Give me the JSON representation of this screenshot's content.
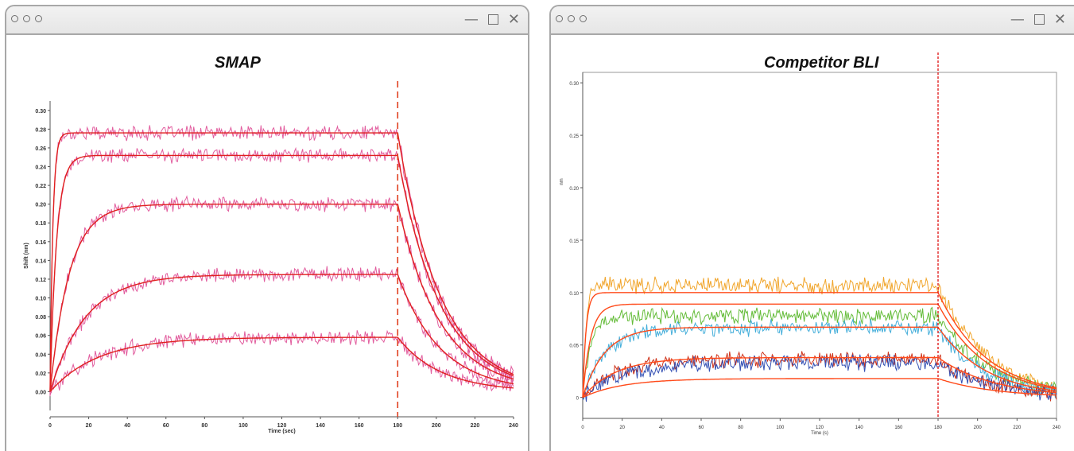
{
  "windows": [
    {
      "name": "SMAP",
      "controls": {
        "minimize": "—",
        "close": "✕"
      }
    },
    {
      "name": "Competitor BLI",
      "controls": {
        "minimize": "—",
        "close": "✕"
      }
    }
  ],
  "chart_data": [
    {
      "type": "line",
      "title": "SMAP",
      "xlabel": "Time (sec)",
      "ylabel": "Shift (nm)",
      "xlim": [
        0,
        240
      ],
      "ylim": [
        -0.02,
        0.31
      ],
      "xticks": [
        "0",
        "20",
        "40",
        "60",
        "80",
        "100",
        "120",
        "140",
        "160",
        "180",
        "200",
        "220",
        "240"
      ],
      "yticks": [
        "0.00",
        "0.02",
        "0.04",
        "0.06",
        "0.08",
        "0.10",
        "0.12",
        "0.14",
        "0.16",
        "0.18",
        "0.20",
        "0.22",
        "0.24",
        "0.26",
        "0.28",
        "0.30"
      ],
      "grid": false,
      "marker_line_x": 180,
      "colors": {
        "data": "#e0559a",
        "fit": "#e02020",
        "marker": "#e04020"
      },
      "series": [
        {
          "plateau": 0.276,
          "kon": 0.7,
          "koff": 0.045
        },
        {
          "plateau": 0.252,
          "kon": 0.3,
          "koff": 0.045
        },
        {
          "plateau": 0.2,
          "kon": 0.1,
          "koff": 0.045
        },
        {
          "plateau": 0.125,
          "kon": 0.055,
          "koff": 0.045
        },
        {
          "plateau": 0.058,
          "kon": 0.04,
          "koff": 0.045
        }
      ]
    },
    {
      "type": "line",
      "title": "Competitor BLI",
      "xlabel": "Time (s)",
      "ylabel": "nm",
      "xlim": [
        0,
        240
      ],
      "ylim": [
        -0.02,
        0.31
      ],
      "xticks": [
        "0",
        "20",
        "40",
        "60",
        "80",
        "100",
        "120",
        "140",
        "160",
        "180",
        "200",
        "220",
        "240"
      ],
      "yticks": [
        "0",
        "0.05",
        "0.10",
        "0.15",
        "0.20",
        "0.25",
        "0.30"
      ],
      "grid": false,
      "marker_line_x": 180,
      "colors": {
        "fit": "#ff4a1a",
        "marker": "#e02020"
      },
      "series": [
        {
          "color": "#f0a020",
          "plateau": 0.107,
          "fit_plateau": 0.1,
          "kon": 0.6,
          "koff": 0.04
        },
        {
          "color": "#5cb82e",
          "plateau": 0.078,
          "fit_plateau": 0.089,
          "kon": 0.25,
          "koff": 0.04
        },
        {
          "color": "#3aaad8",
          "plateau": 0.066,
          "fit_plateau": 0.067,
          "kon": 0.09,
          "koff": 0.04
        },
        {
          "color": "#cc2a10",
          "plateau": 0.036,
          "fit_plateau": 0.038,
          "kon": 0.06,
          "koff": 0.035
        },
        {
          "color": "#2a48b0",
          "plateau": 0.033,
          "fit_plateau": 0.018,
          "kon": 0.05,
          "koff": 0.035
        }
      ]
    }
  ]
}
